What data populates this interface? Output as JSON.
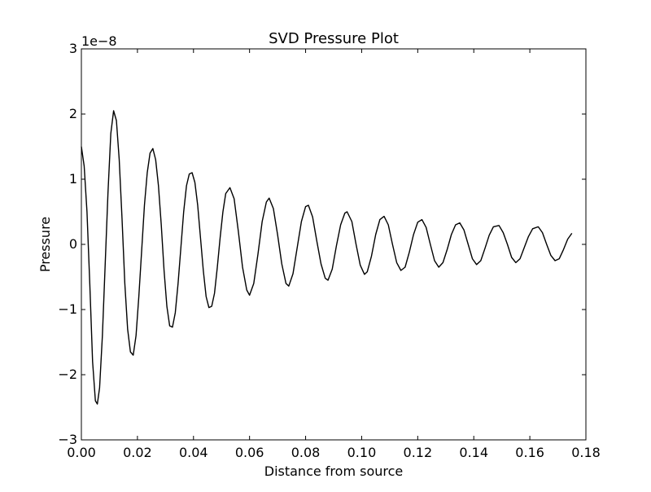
{
  "chart_data": {
    "type": "line",
    "title": "SVD Pressure Plot",
    "xlabel": "Distance from source",
    "ylabel": "Pressure",
    "offset_label": "1e−8",
    "xlim": [
      0.0,
      0.18
    ],
    "ylim": [
      -3e-08,
      3e-08
    ],
    "xticks": [
      0.0,
      0.02,
      0.04,
      0.06,
      0.08,
      0.1,
      0.12,
      0.14,
      0.16,
      0.18
    ],
    "xtick_labels": [
      "0.00",
      "0.02",
      "0.04",
      "0.06",
      "0.08",
      "0.10",
      "0.12",
      "0.14",
      "0.16",
      "0.18"
    ],
    "yticks": [
      -3e-08,
      -2e-08,
      -1e-08,
      0,
      1e-08,
      2e-08,
      3e-08
    ],
    "ytick_labels": [
      "−3",
      "−2",
      "−1",
      "0",
      "1",
      "2",
      "3"
    ],
    "grid": false,
    "series": [
      {
        "color": "#000000",
        "points": [
          [
            0.0,
            1.5e-08
          ],
          [
            0.001,
            1.2e-08
          ],
          [
            0.002,
            5e-09
          ],
          [
            0.003,
            -6e-09
          ],
          [
            0.004,
            -1.8e-08
          ],
          [
            0.005,
            -2.4e-08
          ],
          [
            0.0057,
            -2.45e-08
          ],
          [
            0.0065,
            -2.2e-08
          ],
          [
            0.0075,
            -1.4e-08
          ],
          [
            0.0085,
            -3e-09
          ],
          [
            0.0095,
            8e-09
          ],
          [
            0.0105,
            1.7e-08
          ],
          [
            0.0115,
            2.05e-08
          ],
          [
            0.0125,
            1.9e-08
          ],
          [
            0.0135,
            1.3e-08
          ],
          [
            0.0145,
            4e-09
          ],
          [
            0.0155,
            -6e-09
          ],
          [
            0.0165,
            -1.3e-08
          ],
          [
            0.0175,
            -1.65e-08
          ],
          [
            0.0185,
            -1.7e-08
          ],
          [
            0.0195,
            -1.4e-08
          ],
          [
            0.0205,
            -8e-09
          ],
          [
            0.0215,
            -1e-09
          ],
          [
            0.0225,
            6e-09
          ],
          [
            0.0235,
            1.1e-08
          ],
          [
            0.0245,
            1.4e-08
          ],
          [
            0.0255,
            1.47e-08
          ],
          [
            0.0265,
            1.3e-08
          ],
          [
            0.0275,
            9e-09
          ],
          [
            0.0285,
            3e-09
          ],
          [
            0.0295,
            -4e-09
          ],
          [
            0.0305,
            -9.5e-09
          ],
          [
            0.0315,
            -1.25e-08
          ],
          [
            0.0325,
            -1.27e-08
          ],
          [
            0.0335,
            -1.05e-08
          ],
          [
            0.0345,
            -6e-09
          ],
          [
            0.0355,
            -5e-10
          ],
          [
            0.0365,
            5e-09
          ],
          [
            0.0375,
            9e-09
          ],
          [
            0.0385,
            1.08e-08
          ],
          [
            0.0395,
            1.1e-08
          ],
          [
            0.0405,
            9.5e-09
          ],
          [
            0.0415,
            6e-09
          ],
          [
            0.0425,
            1e-09
          ],
          [
            0.0435,
            -4e-09
          ],
          [
            0.0445,
            -8e-09
          ],
          [
            0.0455,
            -9.7e-09
          ],
          [
            0.0465,
            -9.5e-09
          ],
          [
            0.0475,
            -7.5e-09
          ],
          [
            0.0485,
            -3.5e-09
          ],
          [
            0.0495,
            1e-09
          ],
          [
            0.0505,
            5e-09
          ],
          [
            0.0515,
            7.8e-09
          ],
          [
            0.053,
            8.7e-09
          ],
          [
            0.0545,
            7e-09
          ],
          [
            0.056,
            2e-09
          ],
          [
            0.0575,
            -3.5e-09
          ],
          [
            0.059,
            -7e-09
          ],
          [
            0.06,
            -7.8e-09
          ],
          [
            0.0615,
            -6e-09
          ],
          [
            0.063,
            -1.5e-09
          ],
          [
            0.0645,
            3.5e-09
          ],
          [
            0.066,
            6.5e-09
          ],
          [
            0.067,
            7.1e-09
          ],
          [
            0.0685,
            5.5e-09
          ],
          [
            0.07,
            1.5e-09
          ],
          [
            0.0715,
            -3e-09
          ],
          [
            0.073,
            -6e-09
          ],
          [
            0.074,
            -6.4e-09
          ],
          [
            0.0755,
            -4.5e-09
          ],
          [
            0.077,
            -5e-10
          ],
          [
            0.0785,
            3.5e-09
          ],
          [
            0.08,
            5.8e-09
          ],
          [
            0.081,
            6e-09
          ],
          [
            0.0825,
            4.2e-09
          ],
          [
            0.084,
            5e-10
          ],
          [
            0.0855,
            -3e-09
          ],
          [
            0.087,
            -5.2e-09
          ],
          [
            0.088,
            -5.5e-09
          ],
          [
            0.0895,
            -3.8e-09
          ],
          [
            0.091,
            -2e-10
          ],
          [
            0.0925,
            3e-09
          ],
          [
            0.094,
            4.8e-09
          ],
          [
            0.0948,
            5e-09
          ],
          [
            0.0965,
            3.5e-09
          ],
          [
            0.098,
            0.0
          ],
          [
            0.0995,
            -3.2e-09
          ],
          [
            0.101,
            -4.6e-09
          ],
          [
            0.102,
            -4.2e-09
          ],
          [
            0.1035,
            -1.8e-09
          ],
          [
            0.105,
            1.5e-09
          ],
          [
            0.1065,
            3.8e-09
          ],
          [
            0.108,
            4.3e-09
          ],
          [
            0.1095,
            3e-09
          ],
          [
            0.111,
            0.0
          ],
          [
            0.1125,
            -2.8e-09
          ],
          [
            0.114,
            -4e-09
          ],
          [
            0.1155,
            -3.5e-09
          ],
          [
            0.117,
            -1.2e-09
          ],
          [
            0.1185,
            1.5e-09
          ],
          [
            0.12,
            3.4e-09
          ],
          [
            0.1215,
            3.8e-09
          ],
          [
            0.123,
            2.6e-09
          ],
          [
            0.1245,
            0.0
          ],
          [
            0.126,
            -2.5e-09
          ],
          [
            0.1275,
            -3.5e-09
          ],
          [
            0.129,
            -2.8e-09
          ],
          [
            0.1305,
            -8e-10
          ],
          [
            0.132,
            1.5e-09
          ],
          [
            0.1335,
            3e-09
          ],
          [
            0.135,
            3.3e-09
          ],
          [
            0.1365,
            2.2e-09
          ],
          [
            0.138,
            0.0
          ],
          [
            0.1395,
            -2.2e-09
          ],
          [
            0.141,
            -3.1e-09
          ],
          [
            0.1425,
            -2.5e-09
          ],
          [
            0.144,
            -6e-10
          ],
          [
            0.1455,
            1.4e-09
          ],
          [
            0.147,
            2.7e-09
          ],
          [
            0.149,
            2.9e-09
          ],
          [
            0.1505,
            1.8e-09
          ],
          [
            0.152,
            0.0
          ],
          [
            0.1535,
            -2e-09
          ],
          [
            0.155,
            -2.8e-09
          ],
          [
            0.1565,
            -2.2e-09
          ],
          [
            0.158,
            -5e-10
          ],
          [
            0.1595,
            1.2e-09
          ],
          [
            0.161,
            2.4e-09
          ],
          [
            0.163,
            2.7e-09
          ],
          [
            0.1645,
            1.8e-09
          ],
          [
            0.166,
            0.0
          ],
          [
            0.1675,
            -1.7e-09
          ],
          [
            0.169,
            -2.5e-09
          ],
          [
            0.1705,
            -2.2e-09
          ],
          [
            0.172,
            -8e-10
          ],
          [
            0.1735,
            8e-10
          ],
          [
            0.175,
            1.7e-09
          ]
        ]
      }
    ]
  }
}
